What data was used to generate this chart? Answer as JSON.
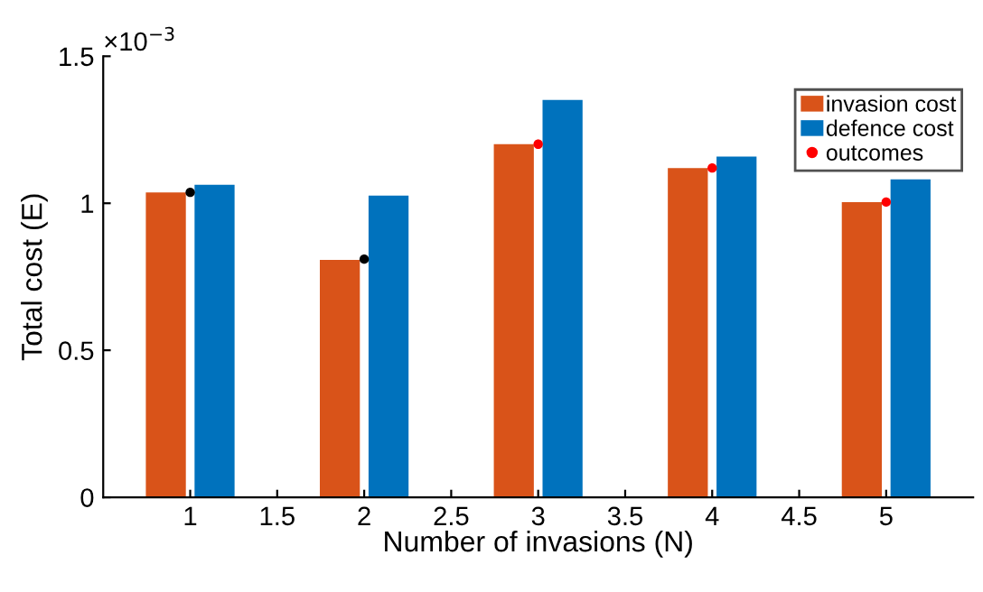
{
  "chart_data": {
    "type": "bar",
    "xlabel": "Number of invasions (N)",
    "ylabel": "Total cost (E)",
    "series": [
      {
        "name": "invasion cost",
        "color": "#d95319",
        "x": [
          0.86,
          1.86,
          2.86,
          3.86,
          4.86
        ],
        "values": [
          1.037,
          0.807,
          1.201,
          1.12,
          1.004
        ]
      },
      {
        "name": "defence cost",
        "color": "#0072bd",
        "x": [
          1.14,
          2.14,
          3.14,
          4.14,
          5.14
        ],
        "values": [
          1.063,
          1.026,
          1.351,
          1.159,
          1.081
        ]
      },
      {
        "name": "outcomes",
        "type": "scatter",
        "color": "#ff0000",
        "colors": [
          "#000000",
          "#000000",
          "#ff0000",
          "#ff0000",
          "#ff0000"
        ],
        "x": [
          1,
          2,
          3,
          4,
          5
        ],
        "values": [
          1.037,
          0.81,
          1.201,
          1.12,
          1.004
        ]
      }
    ],
    "xlim": [
      0.5,
      5.5
    ],
    "xticks": [
      1,
      1.5,
      2,
      2.5,
      3,
      3.5,
      4,
      4.5,
      5
    ],
    "ylim": [
      0,
      1.5
    ],
    "yticks": [
      0,
      0.5,
      1,
      1.5
    ],
    "annotations": [
      "×10$^{−3}$"
    ],
    "marker": "circle",
    "grid": false,
    "legend": "top right"
  }
}
